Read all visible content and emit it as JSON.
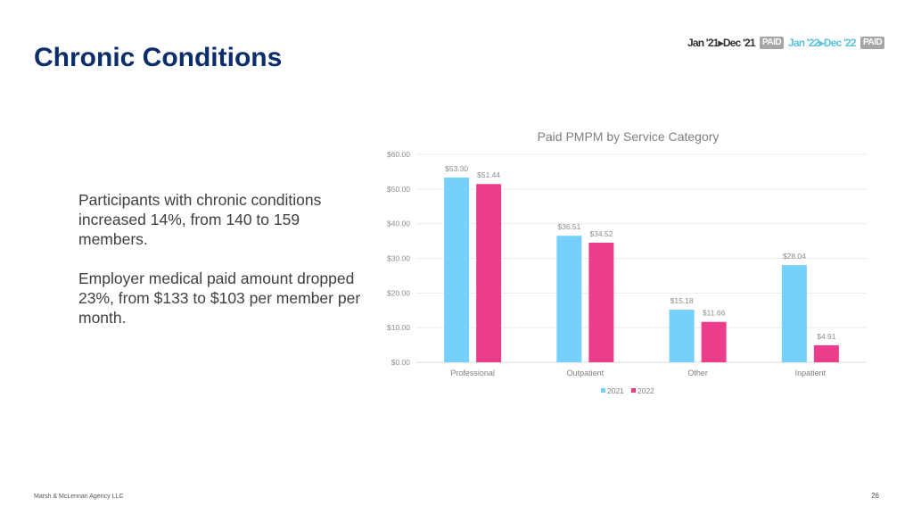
{
  "page": {
    "title": "Chronic Conditions",
    "period_2021": "Jan '21▸Dec '21",
    "period_2022": "Jan '22▸Dec '22",
    "paid_badge": "PAID",
    "paragraphs": [
      "Participants with chronic conditions increased 14%, from 140 to 159 members.",
      "Employer medical paid amount dropped 23%, from $133 to $103 per member per month."
    ],
    "footer": "Marsh & McLennan Agency LLC",
    "page_number": "26"
  },
  "chart_data": {
    "type": "bar",
    "title": "Paid PMPM by Service Category",
    "categories": [
      "Professional",
      "Outpatient",
      "Other",
      "Inpatient"
    ],
    "series": [
      {
        "name": "2021",
        "color": "#75d0fb",
        "values": [
          53.3,
          36.51,
          15.18,
          28.04
        ],
        "labels": [
          "$53.30",
          "$36.51",
          "$15.18",
          "$28.04"
        ]
      },
      {
        "name": "2022",
        "color": "#ec3d8c",
        "values": [
          51.44,
          34.52,
          11.66,
          4.91
        ],
        "labels": [
          "$51.44",
          "$34.52",
          "$11.66",
          "$4.91"
        ]
      }
    ],
    "ylim": [
      0,
      60
    ],
    "yticks": [
      0,
      10,
      20,
      30,
      40,
      50,
      60
    ],
    "ytick_labels": [
      "$0.00",
      "$10.00",
      "$20.00",
      "$30.00",
      "$40.00",
      "$50.00",
      "$60.00"
    ],
    "grid": true,
    "legend": "bottom",
    "xlabel": "",
    "ylabel": ""
  }
}
